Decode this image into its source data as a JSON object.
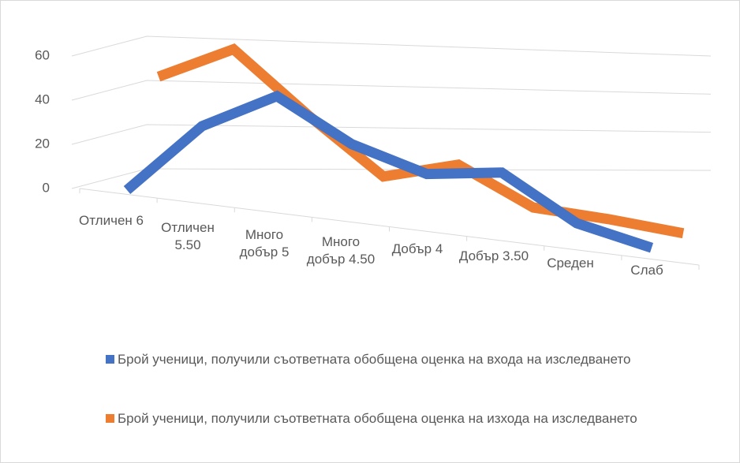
{
  "chart_data": {
    "type": "line3d",
    "categories": [
      "Отличен 6",
      "Отличен 5.50",
      "Много добър 5",
      "Много добър 4.50",
      "Добър 4",
      "Добър 3.50",
      "Среден",
      "Слаб"
    ],
    "series": [
      {
        "name": "Брой ученици, получили съответната обобщена оценка на входа на изследването",
        "color": "#4472c4",
        "values": [
          0,
          28,
          43,
          28,
          20,
          24,
          8,
          2
        ]
      },
      {
        "name": "Брой ученици, получили съответната обобщена оценка на изхода на изследването",
        "color": "#ed7d31",
        "values": [
          36,
          50,
          28,
          8,
          16,
          3,
          2,
          0
        ]
      }
    ],
    "ylim": [
      0,
      60
    ],
    "yticks": [
      0,
      20,
      40,
      60
    ],
    "grid": true
  }
}
